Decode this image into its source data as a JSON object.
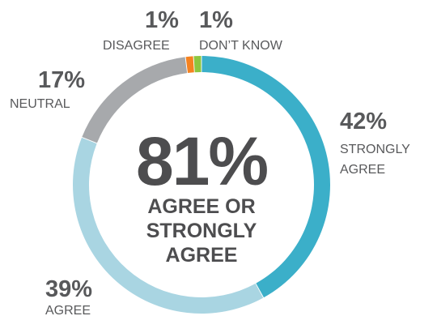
{
  "chart_data": {
    "type": "pie",
    "subtype": "donut",
    "slices": [
      {
        "label": "STRONGLY AGREE",
        "value": 42,
        "value_label": "42%",
        "color": "#3bafc9"
      },
      {
        "label": "AGREE",
        "value": 39,
        "value_label": "39%",
        "color": "#a9d5e2"
      },
      {
        "label": "NEUTRAL",
        "value": 17,
        "value_label": "17%",
        "color": "#a7a9ac"
      },
      {
        "label": "DISAGREE",
        "value": 1,
        "value_label": "1%",
        "color": "#f58220"
      },
      {
        "label": "DON’T KNOW",
        "value": 1,
        "value_label": "1%",
        "color": "#8dc63f"
      }
    ],
    "center": {
      "value_label": "81%",
      "lines": [
        "AGREE OR",
        "STRONGLY",
        "AGREE"
      ]
    }
  }
}
